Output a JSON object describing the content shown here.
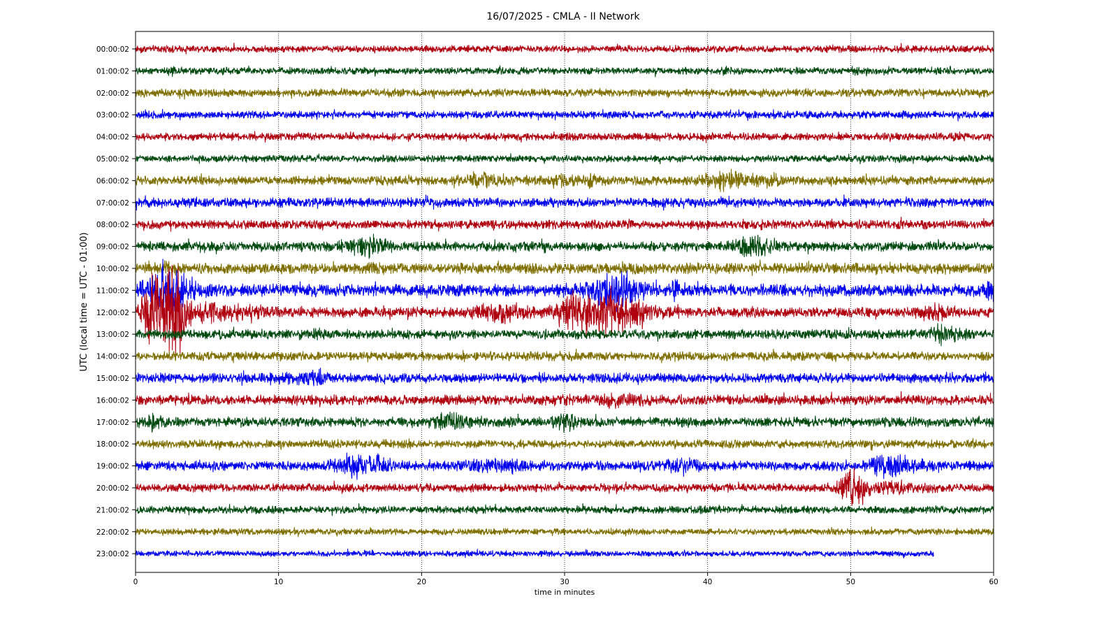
{
  "chart_data": {
    "type": "line",
    "title": "16/07/2025 - CMLA - II Network",
    "xlabel": "time in minutes",
    "ylabel": "UTC (local time = UTC - 01:00)",
    "xlim": [
      0,
      60
    ],
    "x_ticks": [
      0,
      10,
      20,
      30,
      40,
      50,
      60
    ],
    "grid": "vertical dotted lines at x ticks",
    "colors": [
      "#b00010",
      "#004a10",
      "#7f6f00",
      "#0000ee"
    ],
    "rows": [
      {
        "label": "00:00:02",
        "color": "#b00010",
        "amp": 0.22,
        "end": 60,
        "events": []
      },
      {
        "label": "01:00:02",
        "color": "#004a10",
        "amp": 0.22,
        "end": 60,
        "events": [
          [
            2.7,
            0.3,
            0.35
          ],
          [
            50.2,
            0.25,
            0.3
          ]
        ]
      },
      {
        "label": "02:00:02",
        "color": "#7f6f00",
        "amp": 0.25,
        "end": 60,
        "events": []
      },
      {
        "label": "03:00:02",
        "color": "#0000ee",
        "amp": 0.24,
        "end": 60,
        "events": []
      },
      {
        "label": "04:00:02",
        "color": "#b00010",
        "amp": 0.24,
        "end": 60,
        "events": [
          [
            57.8,
            0.4,
            0.35
          ]
        ]
      },
      {
        "label": "05:00:02",
        "color": "#004a10",
        "amp": 0.22,
        "end": 60,
        "events": []
      },
      {
        "label": "06:00:02",
        "color": "#7f6f00",
        "amp": 0.28,
        "end": 60,
        "events": [
          [
            24.2,
            0.8,
            0.6
          ],
          [
            30,
            1.0,
            0.45
          ],
          [
            32,
            0.8,
            0.45
          ],
          [
            41.5,
            1.2,
            0.7
          ],
          [
            44,
            1.0,
            0.5
          ]
        ]
      },
      {
        "label": "07:00:02",
        "color": "#0000ee",
        "amp": 0.3,
        "end": 60,
        "events": [
          [
            3,
            0.3,
            0.3
          ],
          [
            39.7,
            0.4,
            0.3
          ],
          [
            51.9,
            0.3,
            0.3
          ]
        ]
      },
      {
        "label": "08:00:02",
        "color": "#b00010",
        "amp": 0.28,
        "end": 60,
        "events": [
          [
            44,
            0.4,
            0.35
          ]
        ]
      },
      {
        "label": "09:00:02",
        "color": "#004a10",
        "amp": 0.3,
        "end": 60,
        "events": [
          [
            15,
            0.8,
            0.5
          ],
          [
            16.5,
            0.8,
            0.8
          ],
          [
            43.2,
            0.9,
            0.8
          ],
          [
            44.3,
            0.5,
            0.5
          ]
        ]
      },
      {
        "label": "10:00:02",
        "color": "#7f6f00",
        "amp": 0.34,
        "end": 60,
        "events": [
          [
            2.4,
            0.3,
            0.6
          ],
          [
            16.5,
            0.7,
            0.4
          ]
        ]
      },
      {
        "label": "11:00:02",
        "color": "#0000ee",
        "amp": 0.38,
        "end": 60,
        "events": [
          [
            2.3,
            1.2,
            1.6
          ],
          [
            33.5,
            1.2,
            1.4
          ],
          [
            37.8,
            0.2,
            0.9
          ],
          [
            59.8,
            0.4,
            0.8
          ]
        ]
      },
      {
        "label": "12:00:02",
        "color": "#b00010",
        "amp": 0.32,
        "end": 60,
        "events": [
          [
            1.3,
            0.5,
            2.8
          ],
          [
            2.3,
            0.9,
            3.0
          ],
          [
            3,
            0.4,
            2.8
          ],
          [
            5,
            2.5,
            0.7
          ],
          [
            25.5,
            1.2,
            0.8
          ],
          [
            31,
            1.0,
            1.6
          ],
          [
            33.5,
            1.3,
            1.7
          ],
          [
            36,
            1.5,
            0.5
          ],
          [
            56,
            0.8,
            0.6
          ]
        ]
      },
      {
        "label": "13:00:02",
        "color": "#004a10",
        "amp": 0.3,
        "end": 60,
        "events": [
          [
            12.5,
            0.4,
            0.5
          ],
          [
            56.5,
            0.8,
            0.6
          ]
        ]
      },
      {
        "label": "14:00:02",
        "color": "#7f6f00",
        "amp": 0.28,
        "end": 60,
        "events": [
          [
            10,
            0.5,
            0.35
          ],
          [
            30,
            0.6,
            0.35
          ]
        ]
      },
      {
        "label": "15:00:02",
        "color": "#0000ee",
        "amp": 0.3,
        "end": 60,
        "events": [
          [
            11,
            1.0,
            0.45
          ],
          [
            12.7,
            0.4,
            0.7
          ],
          [
            33.8,
            0.6,
            0.4
          ],
          [
            49,
            0.4,
            0.3
          ]
        ]
      },
      {
        "label": "16:00:02",
        "color": "#b00010",
        "amp": 0.32,
        "end": 60,
        "events": [
          [
            11,
            1.0,
            0.35
          ],
          [
            30.5,
            0.8,
            0.4
          ],
          [
            33.3,
            0.5,
            0.7
          ],
          [
            35,
            0.5,
            0.5
          ],
          [
            37.5,
            0.8,
            0.35
          ]
        ]
      },
      {
        "label": "17:00:02",
        "color": "#004a10",
        "amp": 0.3,
        "end": 60,
        "events": [
          [
            1.2,
            0.5,
            0.65
          ],
          [
            22,
            0.8,
            0.7
          ],
          [
            25.5,
            0.8,
            0.35
          ],
          [
            30,
            0.6,
            0.7
          ]
        ]
      },
      {
        "label": "18:00:02",
        "color": "#7f6f00",
        "amp": 0.26,
        "end": 60,
        "events": []
      },
      {
        "label": "19:00:02",
        "color": "#0000ee",
        "amp": 0.3,
        "end": 60,
        "events": [
          [
            15,
            0.8,
            0.9
          ],
          [
            16.8,
            0.7,
            0.8
          ],
          [
            25,
            1.5,
            0.5
          ],
          [
            26.5,
            0.5,
            0.6
          ],
          [
            38.2,
            0.8,
            0.6
          ],
          [
            52.2,
            0.6,
            0.8
          ],
          [
            53.2,
            1.0,
            0.8
          ],
          [
            55,
            1.0,
            0.5
          ]
        ]
      },
      {
        "label": "20:00:02",
        "color": "#b00010",
        "amp": 0.26,
        "end": 60,
        "events": [
          [
            50.1,
            0.6,
            1.35
          ],
          [
            52,
            2.0,
            0.5
          ]
        ]
      },
      {
        "label": "21:00:02",
        "color": "#004a10",
        "amp": 0.24,
        "end": 60,
        "events": [
          [
            40,
            0.5,
            0.3
          ]
        ]
      },
      {
        "label": "22:00:02",
        "color": "#7f6f00",
        "amp": 0.2,
        "end": 60,
        "events": []
      },
      {
        "label": "23:00:02",
        "color": "#0000ee",
        "amp": 0.18,
        "end": 55.8,
        "events": []
      }
    ]
  }
}
